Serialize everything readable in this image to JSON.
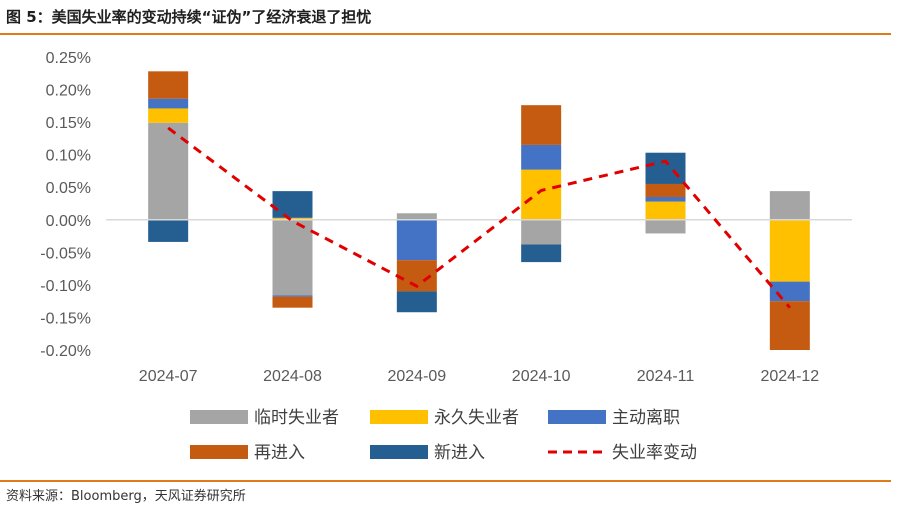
{
  "header": {
    "title": "图 5：美国失业率的变动持续“证伪”了经济衰退了担忧"
  },
  "footer": {
    "source": "资料来源：Bloomberg，天风证券研究所"
  },
  "colors": {
    "rule": "#e07b1a",
    "临时失业者": "#a5a5a5",
    "永久失业者": "#ffc000",
    "主动离职": "#4472c4",
    "再进入": "#c55a11",
    "新进入": "#255e91",
    "失业率变动": "#e00000"
  },
  "chart_data": {
    "type": "bar",
    "stacked": true,
    "title": "",
    "xlabel": "",
    "ylabel": "",
    "categories": [
      "2024-07",
      "2024-08",
      "2024-09",
      "2024-10",
      "2024-11",
      "2024-12"
    ],
    "ylim": [
      -0.2,
      0.25
    ],
    "yticks": [
      "0.25%",
      "0.20%",
      "0.15%",
      "0.10%",
      "0.05%",
      "0.00%",
      "-0.05%",
      "-0.10%",
      "-0.15%",
      "-0.20%"
    ],
    "unit": "%",
    "grid": false,
    "legend_position": "bottom",
    "legend": [
      "临时失业者",
      "永久失业者",
      "主动离职",
      "再进入",
      "新进入",
      "失业率变动"
    ],
    "series": [
      {
        "name": "临时失业者",
        "kind": "bar",
        "values": [
          0.149,
          -0.116,
          0.01,
          -0.038,
          -0.021,
          0.044
        ]
      },
      {
        "name": "永久失业者",
        "kind": "bar",
        "values": [
          0.022,
          0.003,
          0.0,
          0.077,
          0.028,
          -0.095
        ]
      },
      {
        "name": "主动离职",
        "kind": "bar",
        "values": [
          0.015,
          -0.002,
          -0.062,
          0.038,
          0.007,
          -0.03
        ]
      },
      {
        "name": "再进入",
        "kind": "bar",
        "values": [
          0.042,
          -0.017,
          -0.048,
          0.061,
          0.02,
          -0.075
        ]
      },
      {
        "name": "新进入",
        "kind": "bar",
        "values": [
          -0.034,
          0.041,
          -0.032,
          -0.027,
          0.048,
          0.0
        ]
      },
      {
        "name": "失业率变动",
        "kind": "line",
        "values": [
          0.141,
          -0.002,
          -0.102,
          0.045,
          0.09,
          -0.135
        ]
      }
    ]
  }
}
